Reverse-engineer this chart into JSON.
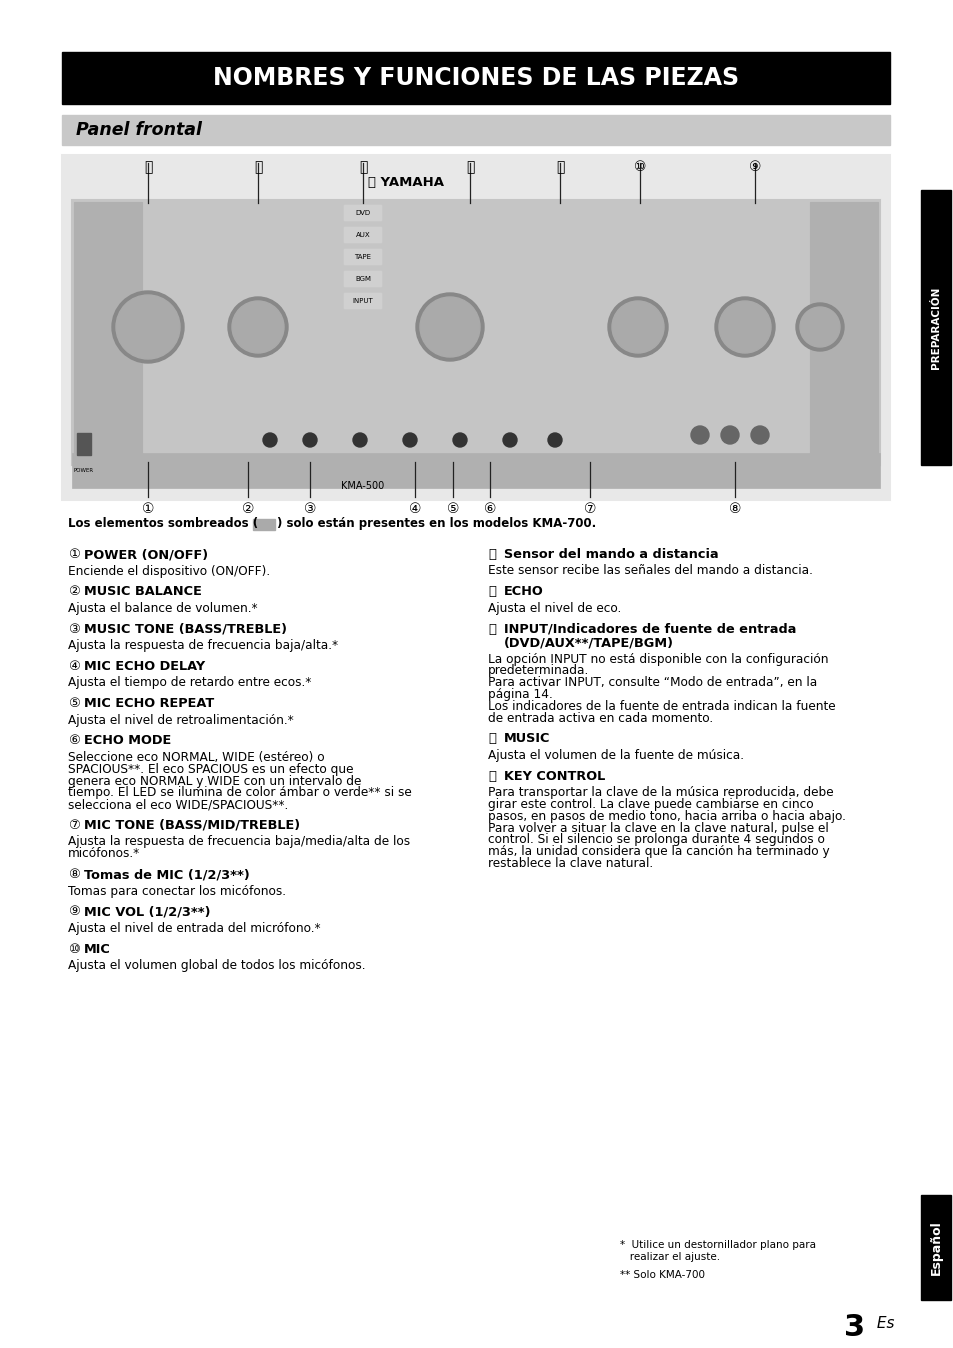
{
  "title": "NOMBRES Y FUNCIONES DE LAS PIEZAS",
  "subtitle": "Panel frontal",
  "bg_color": "#ffffff",
  "title_bg": "#000000",
  "title_fg": "#ffffff",
  "subtitle_bg": "#c8c8c8",
  "subtitle_fg": "#000000",
  "side_bar_right_text": "PREPARACIÓN",
  "side_bar_bottom_text": "Español",
  "page_number": "3",
  "page_suffix": " Es",
  "note_shaded_box_color": "#aaaaaa",
  "left_items": [
    {
      "num": "①",
      "heading": "POWER (ON/OFF)",
      "heading_bold": true,
      "text": "Enciende el dispositivo (ON/OFF)."
    },
    {
      "num": "②",
      "heading": "MUSIC BALANCE",
      "heading_bold": true,
      "text": "Ajusta el balance de volumen.*"
    },
    {
      "num": "③",
      "heading": "MUSIC TONE (BASS/TREBLE)",
      "heading_bold": true,
      "text": "Ajusta la respuesta de frecuencia baja/alta.*"
    },
    {
      "num": "④",
      "heading": "MIC ECHO DELAY",
      "heading_bold": true,
      "text": "Ajusta el tiempo de retardo entre ecos.*"
    },
    {
      "num": "⑤",
      "heading": "MIC ECHO REPEAT",
      "heading_bold": true,
      "text": "Ajusta el nivel de retroalimentación.*"
    },
    {
      "num": "⑥",
      "heading": "ECHO MODE",
      "heading_bold": true,
      "text": "Seleccione eco NORMAL, WIDE (estéreo) o\nSPACIOUS**. El eco SPACIOUS es un efecto que\ngenera eco NORMAL y WIDE con un intervalo de\ntiempo. El LED se ilumina de color ámbar o verde** si se\nselecciona el eco WIDE/SPACIOUS**."
    },
    {
      "num": "⑦",
      "heading": "MIC TONE (BASS/MID/TREBLE)",
      "heading_bold": true,
      "text": "Ajusta la respuesta de frecuencia baja/media/alta de los\nmicófonos.*"
    },
    {
      "num": "⑧",
      "heading": "Tomas de MIC (1/2/3**)",
      "heading_bold": false,
      "text": "Tomas para conectar los micófonos."
    },
    {
      "num": "⑨",
      "heading": "MIC VOL (1/2/3**)",
      "heading_bold": true,
      "text": "Ajusta el nivel de entrada del micrófono.*"
    },
    {
      "num": "⑩",
      "heading": "MIC",
      "heading_bold": true,
      "text": "Ajusta el volumen global de todos los micófonos."
    }
  ],
  "right_items": [
    {
      "num": "⑪",
      "heading": "Sensor del mando a distancia",
      "heading_bold": false,
      "text": "Este sensor recibe las señales del mando a distancia."
    },
    {
      "num": "⑫",
      "heading": "ECHO",
      "heading_bold": true,
      "text": "Ajusta el nivel de eco."
    },
    {
      "num": "⑬",
      "heading": "INPUT/Indicadores de fuente de entrada\n(DVD/AUX**/TAPE/BGM)",
      "heading_bold": false,
      "text": "La opción INPUT no está disponible con la configuración\npredeterminada.\nPara activar INPUT, consulte “Modo de entrada”, en la\npágina 14.\nLos indicadores de la fuente de entrada indican la fuente\nde entrada activa en cada momento."
    },
    {
      "num": "⑭",
      "heading": "MUSIC",
      "heading_bold": true,
      "text": "Ajusta el volumen de la fuente de música."
    },
    {
      "num": "⑮",
      "heading": "KEY CONTROL",
      "heading_bold": true,
      "text": "Para transportar la clave de la música reproducida, debe\ngirar este control. La clave puede cambiarse en cinco\npasos, en pasos de medio tono, hacia arriba o hacia abajo.\nPara volver a situar la clave en la clave natural, pulse el\ncontrol. Si el silencio se prolonga durante 4 segundos o\nmás, la unidad considera que la canción ha terminado y\nrestablece la clave natural."
    }
  ],
  "footnote1": "*  Utilice un destornillador plano para\n   realizar el ajuste.",
  "footnote2": "** Solo KMA-700",
  "shaded_note_pre": "Los elementos sombreados (",
  "shaded_note_post": ") solo están presentes en los modelos KMA-700."
}
